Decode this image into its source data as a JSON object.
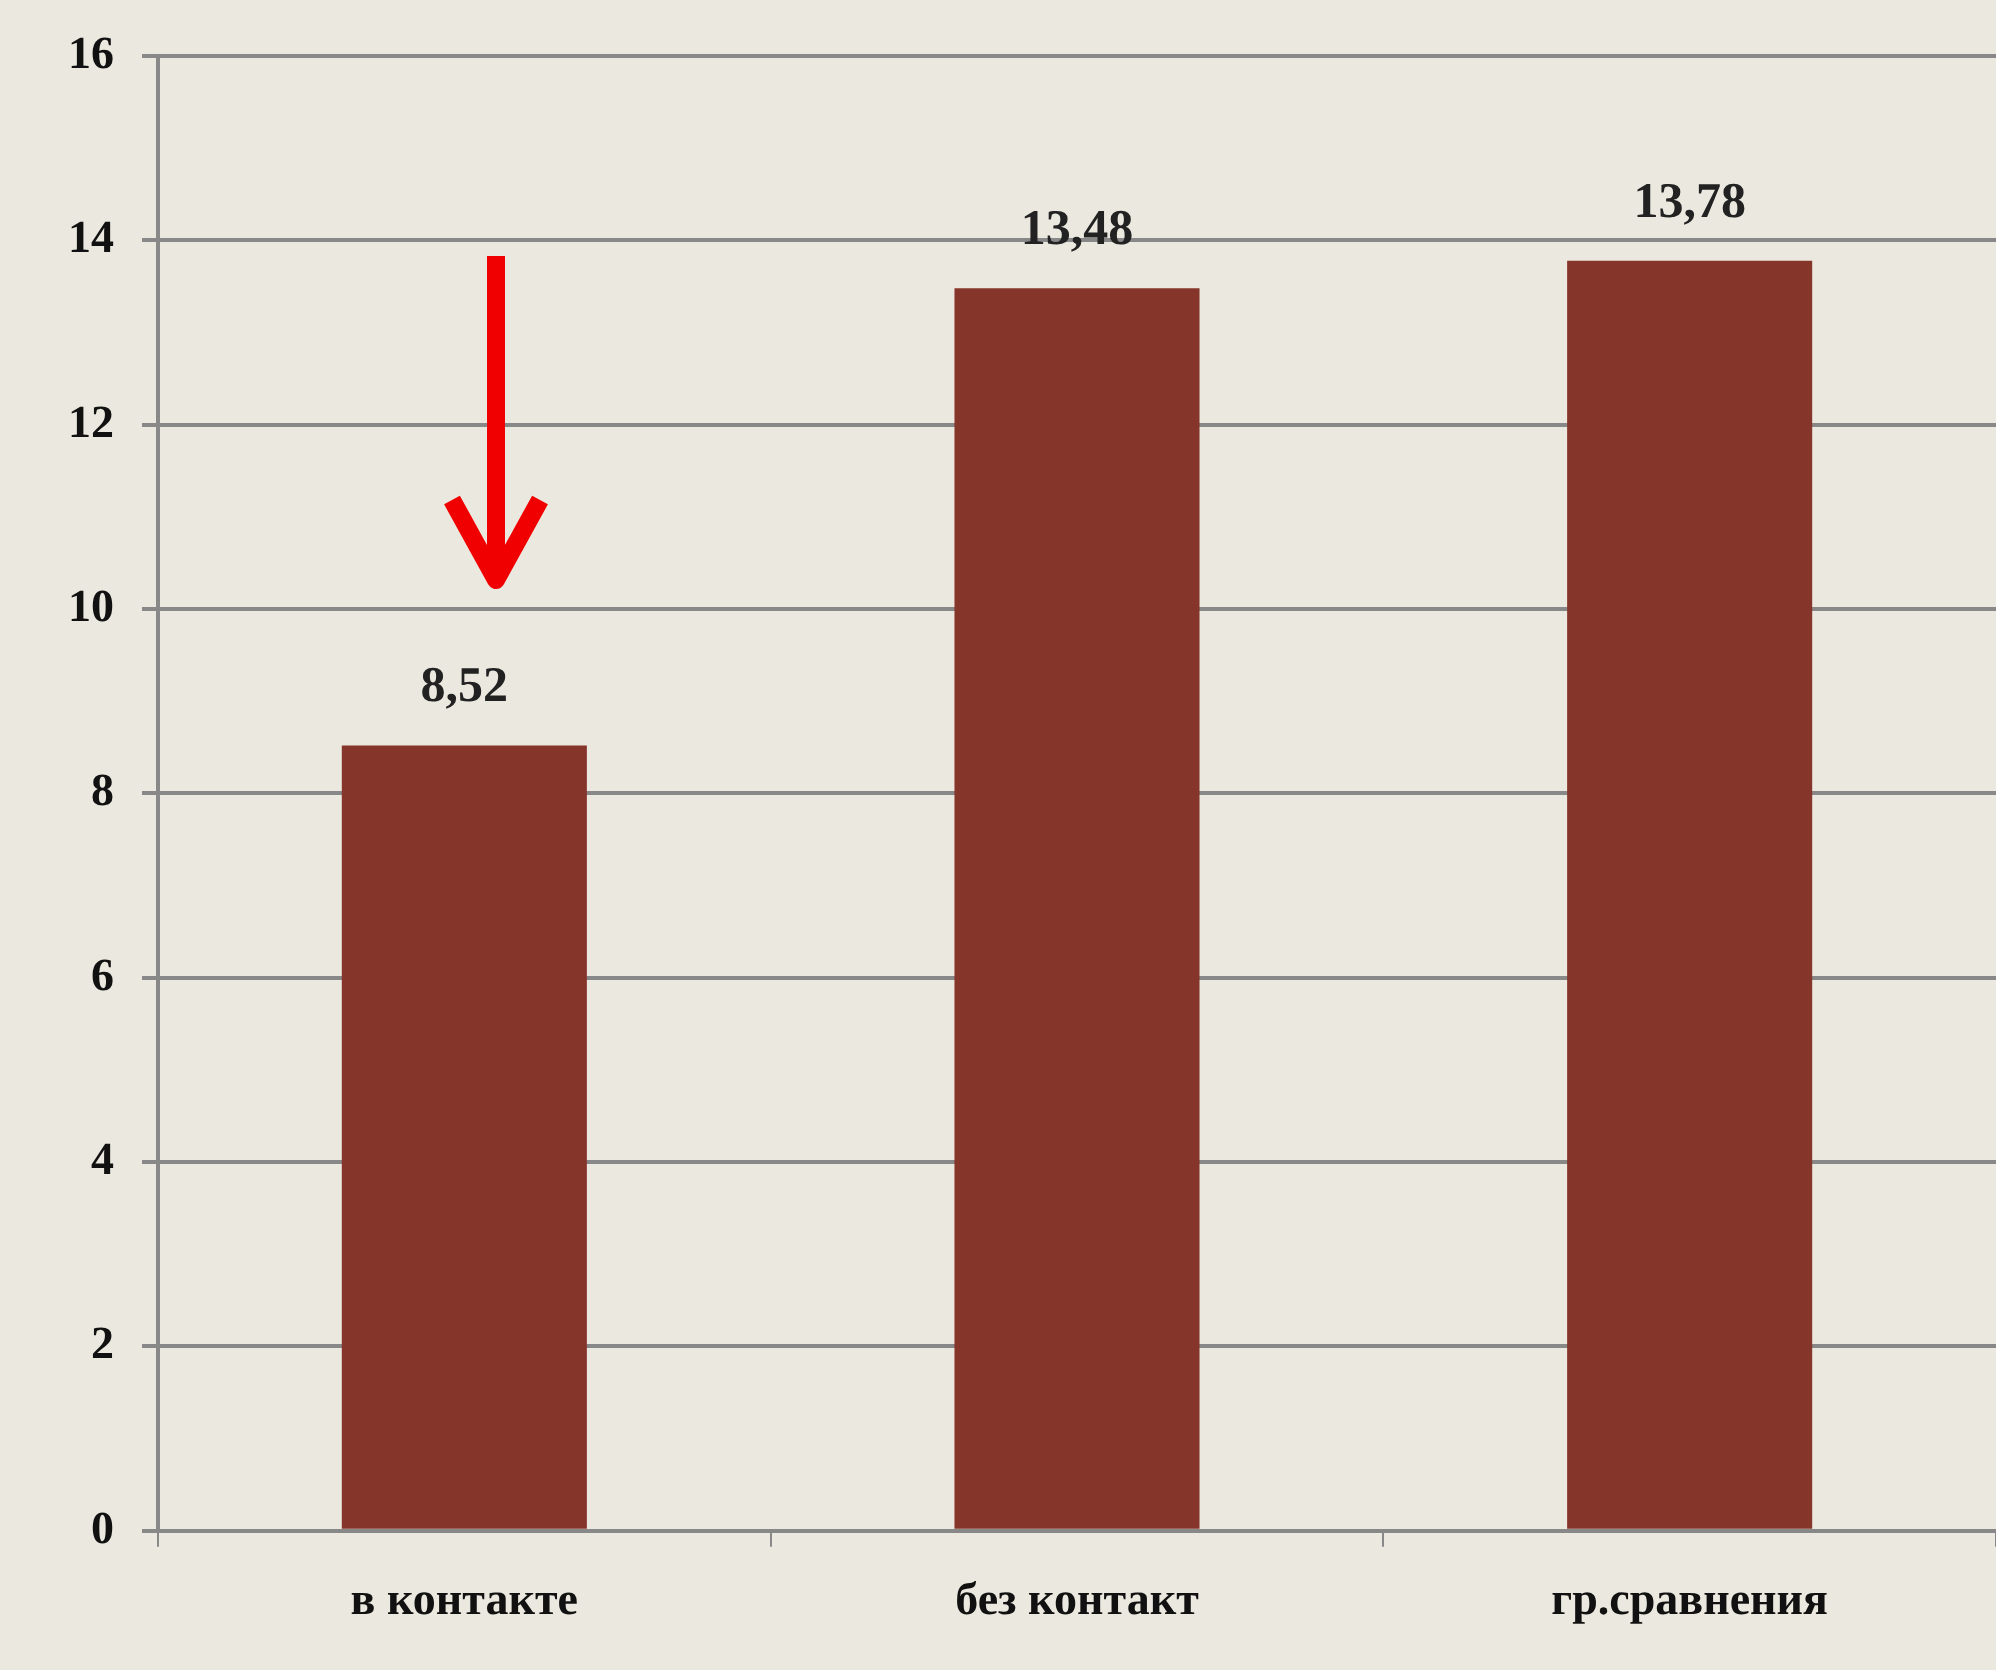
{
  "chart_data": {
    "type": "bar",
    "categories": [
      "в контакте",
      "без контакт",
      "гр.сравнения"
    ],
    "values": [
      8.52,
      13.48,
      13.78
    ],
    "value_labels": [
      "8,52",
      "13,48",
      "13,78"
    ],
    "color": "#85352a",
    "ylim": [
      0,
      16
    ],
    "yticks": [
      0,
      2,
      4,
      6,
      8,
      10,
      12,
      14,
      16
    ],
    "grid": "y",
    "legend": false
  }
}
